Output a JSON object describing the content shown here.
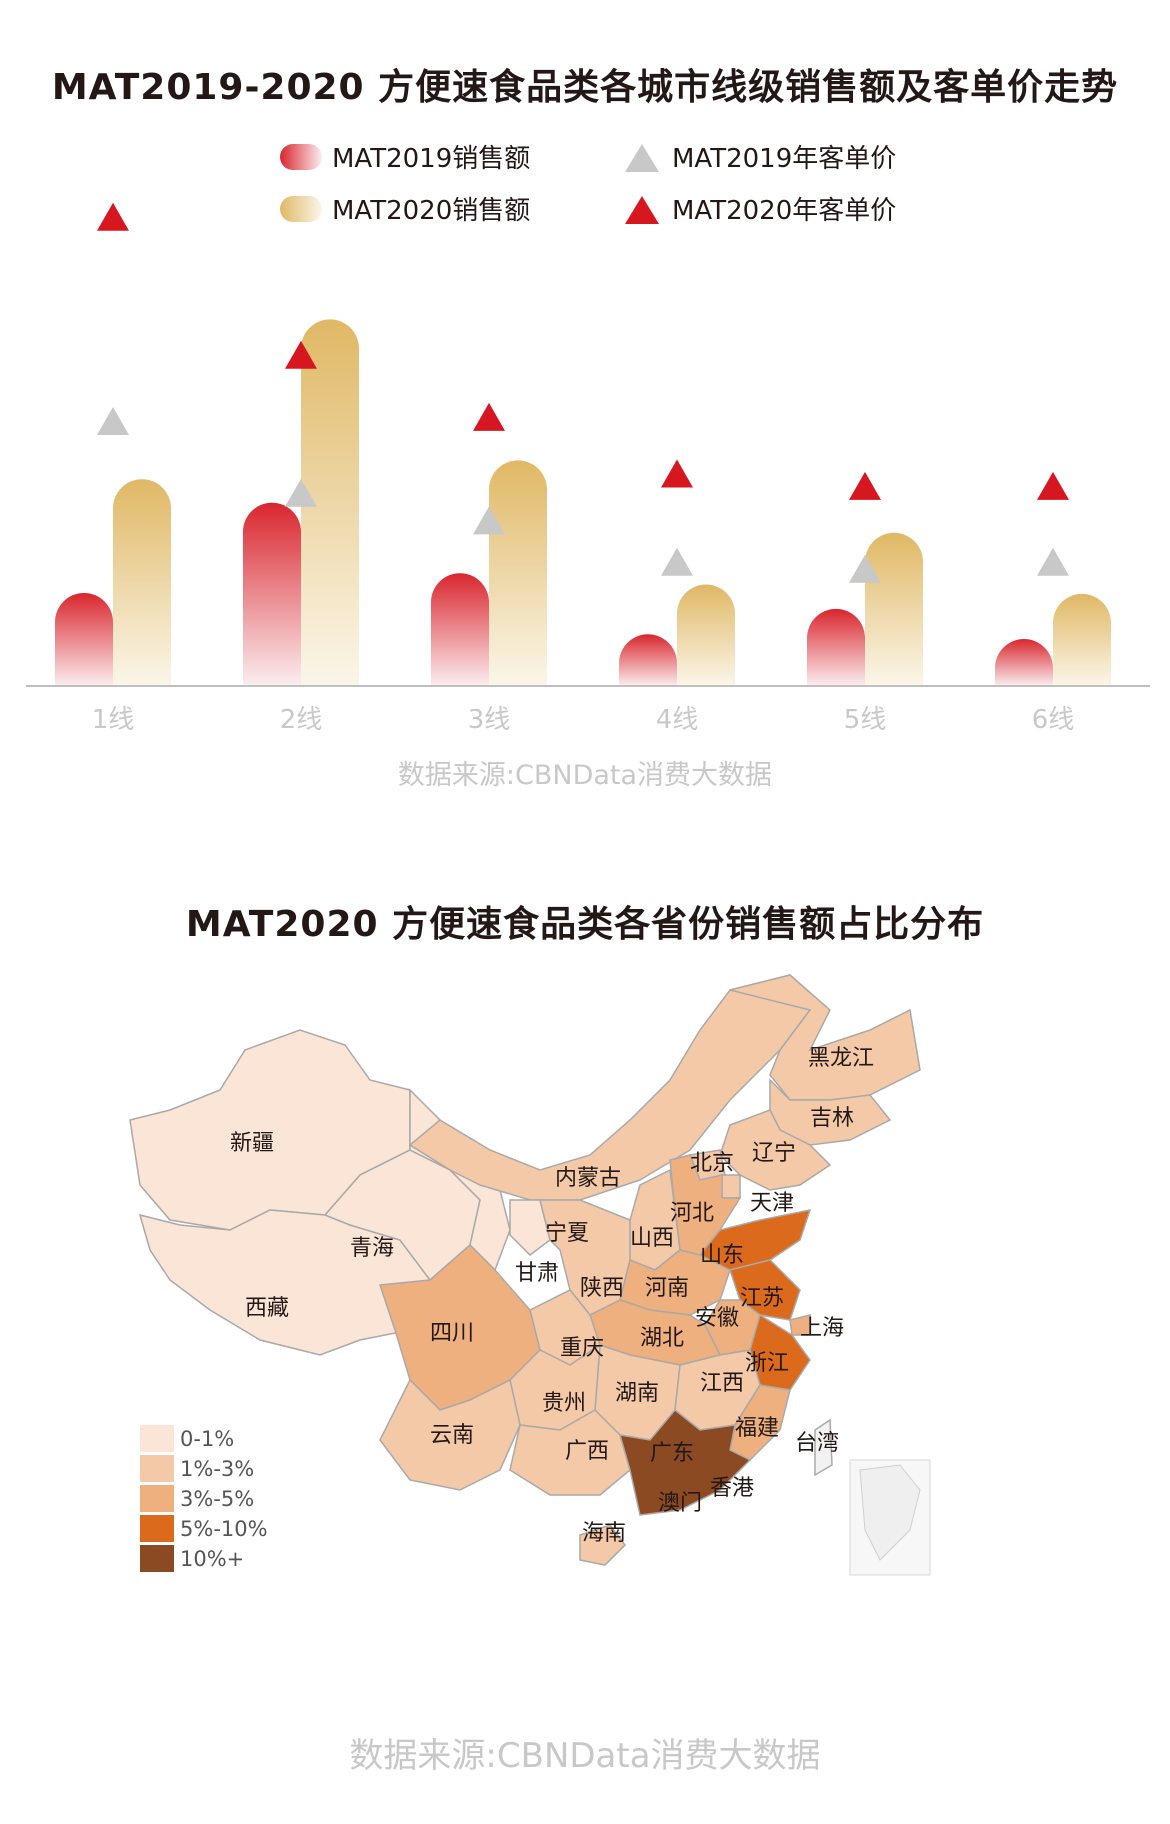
{
  "chart_title": "MAT2019-2020 方便速食品类各城市线级销售额及客单价走势",
  "chart_source": "数据来源:CBNData消费大数据",
  "map_title": "MAT2020 方便速食品类各省份销售额占比分布",
  "map_source": "数据来源:CBNData消费大数据",
  "colors": {
    "sales2019_top": "#d9262e",
    "sales2019_bottom": "#fbeef0",
    "sales2020_top": "#e0b865",
    "sales2020_bottom": "#fbf6ea",
    "price2019": "#c8c8c8",
    "price2020": "#d7171f"
  },
  "chart_data": {
    "type": "bar",
    "categories": [
      "1线",
      "2线",
      "3线",
      "4线",
      "5线",
      "6线"
    ],
    "series": [
      {
        "name": "MAT2019销售额",
        "kind": "bar",
        "values": [
          0.99,
          1.95,
          1.2,
          0.55,
          0.82,
          0.5
        ]
      },
      {
        "name": "MAT2020销售额",
        "kind": "bar",
        "values": [
          2.2,
          3.9,
          2.4,
          1.08,
          1.63,
          0.98
        ]
      },
      {
        "name": "MAT2019年客单价",
        "kind": "marker",
        "values": [
          3.12,
          2.6,
          2.4,
          2.1,
          2.05,
          2.1
        ]
      },
      {
        "name": "MAT2020年客单价",
        "kind": "marker",
        "values": [
          4.6,
          3.6,
          3.15,
          2.74,
          2.65,
          2.65
        ]
      }
    ],
    "legend": "top-center",
    "grid": false
  },
  "map_data": {
    "legend": [
      "0-1%",
      "1%-3%",
      "3%-5%",
      "5%-10%",
      "10%+"
    ],
    "legend_colors": [
      "#fbe5d7",
      "#f4c9a8",
      "#eeb07e",
      "#db6a1c",
      "#8b4a22"
    ],
    "regions": [
      {
        "name": "黑龙江",
        "share": "1%-3%"
      },
      {
        "name": "吉林",
        "share": "1%-3%"
      },
      {
        "name": "辽宁",
        "share": "1%-3%"
      },
      {
        "name": "内蒙古",
        "share": "1%-3%"
      },
      {
        "name": "北京",
        "share": "1%-3%"
      },
      {
        "name": "天津",
        "share": "1%-3%"
      },
      {
        "name": "河北",
        "share": "3%-5%"
      },
      {
        "name": "山西",
        "share": "1%-3%"
      },
      {
        "name": "山东",
        "share": "5%-10%"
      },
      {
        "name": "江苏",
        "share": "5%-10%"
      },
      {
        "name": "上海",
        "share": "3%-5%"
      },
      {
        "name": "浙江",
        "share": "5%-10%"
      },
      {
        "name": "安徽",
        "share": "3%-5%"
      },
      {
        "name": "河南",
        "share": "3%-5%"
      },
      {
        "name": "陕西",
        "share": "1%-3%"
      },
      {
        "name": "宁夏",
        "share": "0-1%"
      },
      {
        "name": "甘肃",
        "share": "0-1%"
      },
      {
        "name": "青海",
        "share": "0-1%"
      },
      {
        "name": "新疆",
        "share": "0-1%"
      },
      {
        "name": "西藏",
        "share": "0-1%"
      },
      {
        "name": "四川",
        "share": "3%-5%"
      },
      {
        "name": "重庆",
        "share": "1%-3%"
      },
      {
        "name": "湖北",
        "share": "3%-5%"
      },
      {
        "name": "湖南",
        "share": "1%-3%"
      },
      {
        "name": "江西",
        "share": "1%-3%"
      },
      {
        "name": "福建",
        "share": "3%-5%"
      },
      {
        "name": "贵州",
        "share": "1%-3%"
      },
      {
        "name": "云南",
        "share": "1%-3%"
      },
      {
        "name": "广西",
        "share": "1%-3%"
      },
      {
        "name": "广东",
        "share": "10%+"
      },
      {
        "name": "台湾",
        "share": ""
      },
      {
        "name": "香港",
        "share": ""
      },
      {
        "name": "澳门",
        "share": ""
      },
      {
        "name": "海南",
        "share": "1%-3%"
      }
    ]
  }
}
